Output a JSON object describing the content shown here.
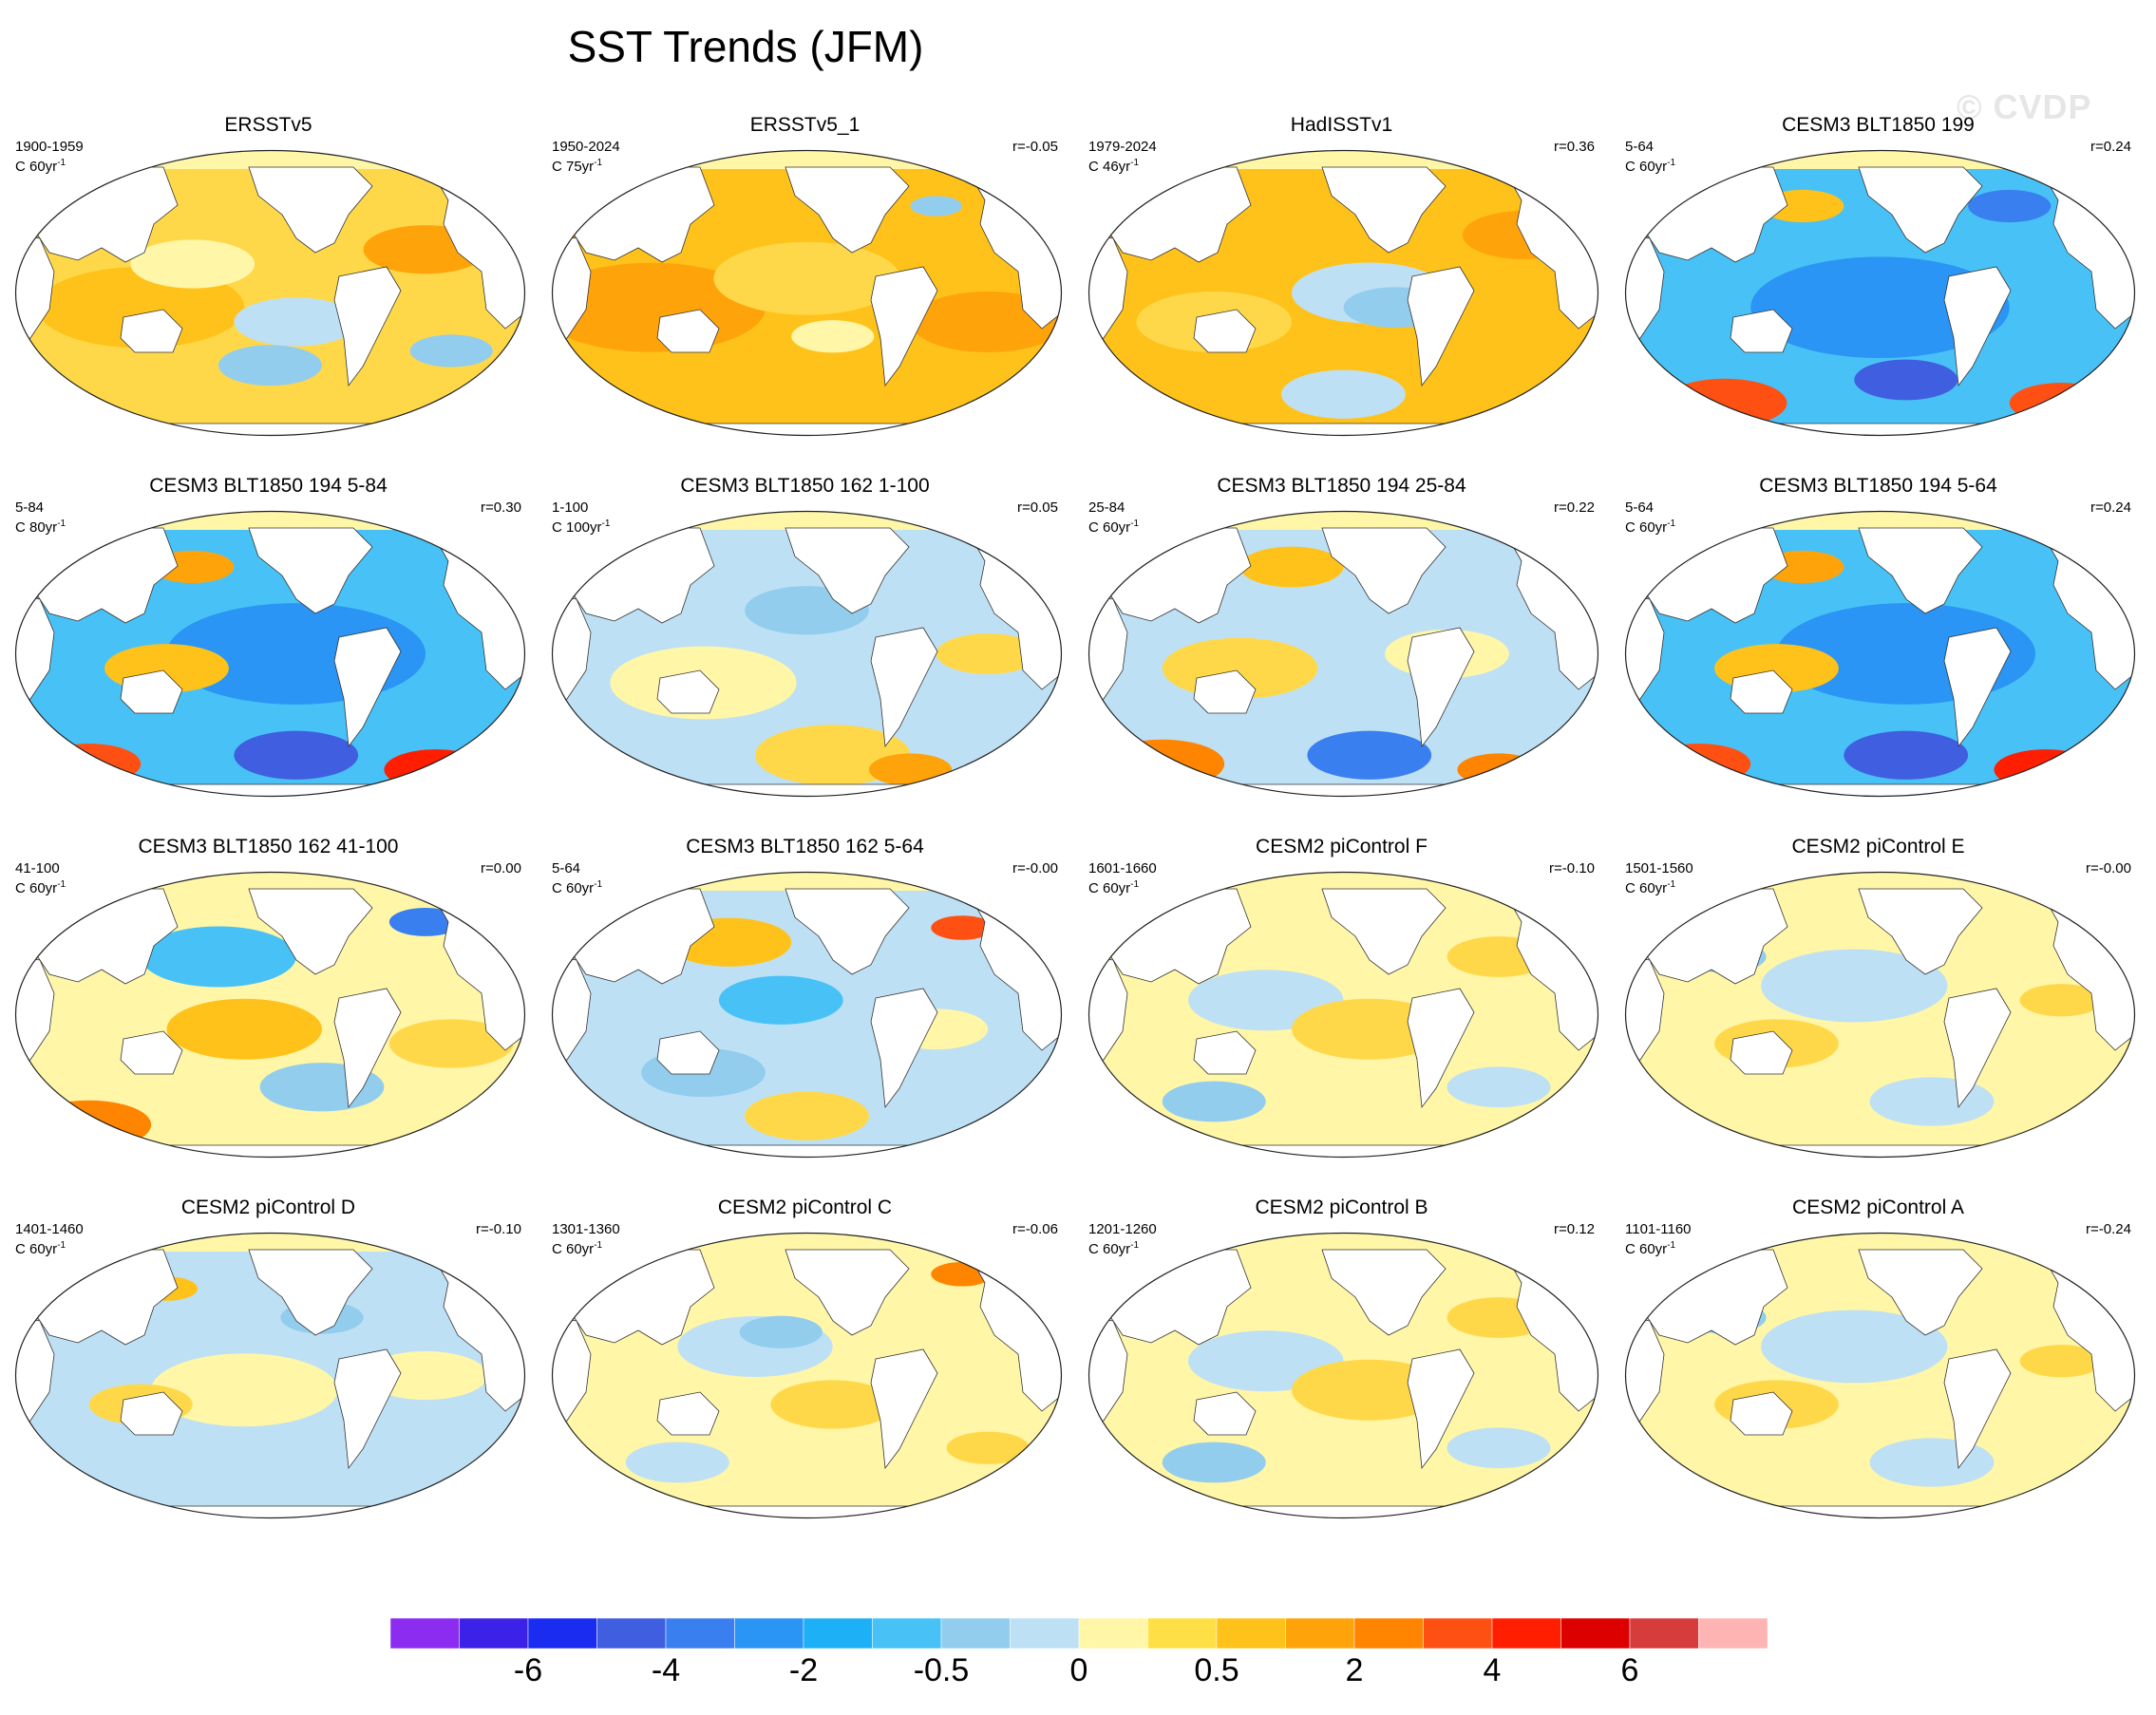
{
  "title": "SST Trends (JFM)",
  "watermark": "© CVDP",
  "panels": [
    {
      "title": "ERSSTv5",
      "period": "1900-1959",
      "units": "C 60yr",
      "corr": "",
      "style": "warm1"
    },
    {
      "title": "ERSSTv5_1",
      "period": "1950-2024",
      "units": "C 75yr",
      "corr": "r=-0.05",
      "style": "warm2"
    },
    {
      "title": "HadISSTv1",
      "period": "1979-2024",
      "units": "C 46yr",
      "corr": "r=0.36",
      "style": "warm3"
    },
    {
      "title": "CESM3 BLT1850 199",
      "period": "5-64",
      "units": "C 60yr",
      "corr": "r=0.24",
      "style": "cold1"
    },
    {
      "title": "CESM3 BLT1850 194 5-84",
      "period": "5-84",
      "units": "C 80yr",
      "corr": "r=0.30",
      "style": "cold2"
    },
    {
      "title": "CESM3 BLT1850 162 1-100",
      "period": "1-100",
      "units": "C 100yr",
      "corr": "r=0.05",
      "style": "mix1"
    },
    {
      "title": "CESM3 BLT1850 194 25-84",
      "period": "25-84",
      "units": "C 60yr",
      "corr": "r=0.22",
      "style": "mix2"
    },
    {
      "title": "CESM3 BLT1850 194 5-64",
      "period": "5-64",
      "units": "C 60yr",
      "corr": "r=0.24",
      "style": "cold2"
    },
    {
      "title": "CESM3 BLT1850 162 41-100",
      "period": "41-100",
      "units": "C 60yr",
      "corr": "r=0.00",
      "style": "mix3"
    },
    {
      "title": "CESM3 BLT1850 162 5-64",
      "period": "5-64",
      "units": "C 60yr",
      "corr": "r=-0.00",
      "style": "mix4"
    },
    {
      "title": "CESM2 piControl F",
      "period": "1601-1660",
      "units": "C 60yr",
      "corr": "r=-0.10",
      "style": "mild1"
    },
    {
      "title": "CESM2 piControl E",
      "period": "1501-1560",
      "units": "C 60yr",
      "corr": "r=-0.00",
      "style": "mild2"
    },
    {
      "title": "CESM2 piControl D",
      "period": "1401-1460",
      "units": "C 60yr",
      "corr": "r=-0.10",
      "style": "mild3"
    },
    {
      "title": "CESM2 piControl C",
      "period": "1301-1360",
      "units": "C 60yr",
      "corr": "r=-0.06",
      "style": "mild4"
    },
    {
      "title": "CESM2 piControl B",
      "period": "1201-1260",
      "units": "C 60yr",
      "corr": "r=0.12",
      "style": "mild1"
    },
    {
      "title": "CESM2 piControl A",
      "period": "1101-1160",
      "units": "C 60yr",
      "corr": "r=-0.24",
      "style": "mild2"
    }
  ],
  "colorbar": {
    "colors": [
      "#8c2cf0",
      "#3c22e8",
      "#1a2cf0",
      "#3f5fe0",
      "#3a7ff0",
      "#2a95f4",
      "#1eb0f6",
      "#48c2f6",
      "#92cdee",
      "#bee0f4",
      "#fff6a8",
      "#ffdf46",
      "#ffc21a",
      "#ffa30a",
      "#ff8400",
      "#ff5014",
      "#ff1e00",
      "#dc0000",
      "#d63c3c",
      "#ffb4b4"
    ],
    "labels": [
      {
        "text": "-6",
        "boundary": 2
      },
      {
        "text": "-4",
        "boundary": 4
      },
      {
        "text": "-2",
        "boundary": 6
      },
      {
        "text": "-0.5",
        "boundary": 8
      },
      {
        "text": "0",
        "boundary": 10
      },
      {
        "text": "0.5",
        "boundary": 12
      },
      {
        "text": "2",
        "boundary": 14
      },
      {
        "text": "4",
        "boundary": 16
      },
      {
        "text": "6",
        "boundary": 18
      }
    ]
  }
}
